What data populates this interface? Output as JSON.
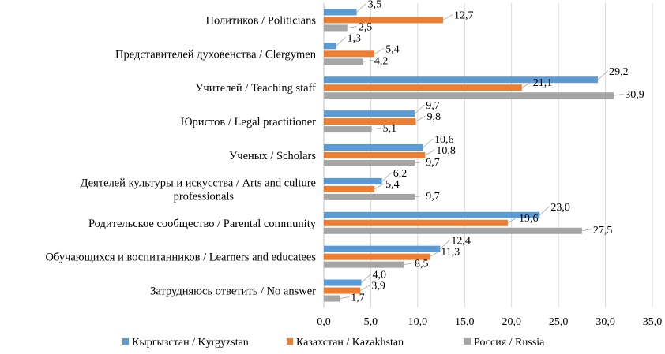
{
  "chart_data": {
    "type": "bar",
    "orientation": "horizontal",
    "title": "",
    "xlabel": "",
    "ylabel": "",
    "xlim": [
      0,
      35
    ],
    "xticks": [
      "0,0",
      "5,0",
      "10,0",
      "15,0",
      "20,0",
      "25,0",
      "30,0",
      "35,0"
    ],
    "grid": true,
    "legend_position": "bottom",
    "categories": [
      [
        "Политиков / Politicians"
      ],
      [
        "Представителей духовенства / Clergymen"
      ],
      [
        "Учителей / Teaching staff"
      ],
      [
        "Юристов / Legal practitioner"
      ],
      [
        "Ученых / Scholars"
      ],
      [
        "Деятелей культуры и искусства / Arts and culture",
        "professionals"
      ],
      [
        "Родительское сообщество / Parental community"
      ],
      [
        "Обучающихся и воспитанников / Learners and educatees"
      ],
      [
        "Затрудняюсь ответить / No answer"
      ]
    ],
    "series": [
      {
        "name": "Кыргызстан / Kyrgyzstan",
        "color": "#5b9bd5",
        "values": [
          3.5,
          1.3,
          29.2,
          9.7,
          10.6,
          6.2,
          23.0,
          12.4,
          4.0
        ],
        "labels": [
          "3,5",
          "1,3",
          "29,2",
          "9,7",
          "10,6",
          "6,2",
          "23,0",
          "12,4",
          "4,0"
        ]
      },
      {
        "name": "Казахстан / Kazakhstan",
        "color": "#ed7d31",
        "values": [
          12.7,
          5.4,
          21.1,
          9.8,
          10.8,
          5.4,
          19.6,
          11.3,
          3.9
        ],
        "labels": [
          "12,7",
          "5,4",
          "21,1",
          "9,8",
          "10,8",
          "5,4",
          "19,6",
          "11,3",
          "3,9"
        ]
      },
      {
        "name": "Россия / Russia",
        "color": "#a5a5a5",
        "values": [
          2.5,
          4.2,
          30.9,
          5.1,
          9.7,
          9.7,
          27.5,
          8.5,
          1.7
        ],
        "labels": [
          "2,5",
          "4,2",
          "30,9",
          "5,1",
          "9,7",
          "9,7",
          "27,5",
          "8,5",
          "1,7"
        ]
      }
    ],
    "colors": {
      "gridline": "#d9d9d9",
      "axis": "#bfbfbf",
      "leader": "#a6a6a6"
    }
  }
}
